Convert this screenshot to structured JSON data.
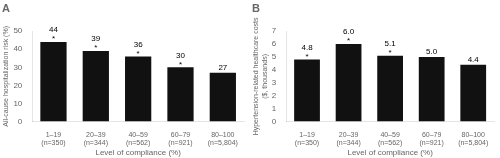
{
  "chart_data": [
    {
      "type": "bar",
      "title": "A",
      "categories": [
        "1–19\n(n=350)",
        "20–39\n(n=344)",
        "40–59\n(n=562)",
        "60–79\n(n=921)",
        "80–100\n(n=5,804)"
      ],
      "values": [
        44,
        39,
        36,
        30,
        27
      ],
      "annotations": [
        "*",
        "*",
        "*",
        "*",
        null
      ],
      "data_labels": true,
      "color": "#111111",
      "ylabel": "All-cause hospitalization risk (%)",
      "xlabel": "Level of compliance (%)",
      "ylim": [
        0,
        50
      ],
      "yticks": [
        0,
        10,
        20,
        30,
        40,
        50
      ],
      "grid": false
    },
    {
      "type": "bar",
      "title": "B",
      "categories": [
        "1–19\n(n=350)",
        "20–39\n(n=344)",
        "40–59\n(n=562)",
        "60–79\n(n=921)",
        "80–100\n(n=5,804)"
      ],
      "values": [
        4.8,
        6.0,
        5.1,
        5.0,
        4.4
      ],
      "value_labels": [
        "4.8",
        "6.0",
        "5.1",
        "5.0",
        "4.4"
      ],
      "annotations": [
        "*",
        "*",
        "*",
        null,
        null
      ],
      "data_labels": true,
      "color": "#111111",
      "ylabel": "Hypertension-related healthcare costs\n($, thousands)",
      "xlabel": "Level of compliance (%)",
      "ylim": [
        0,
        7
      ],
      "yticks": [
        0,
        1,
        2,
        3,
        4,
        5,
        6,
        7
      ],
      "grid": false
    }
  ]
}
